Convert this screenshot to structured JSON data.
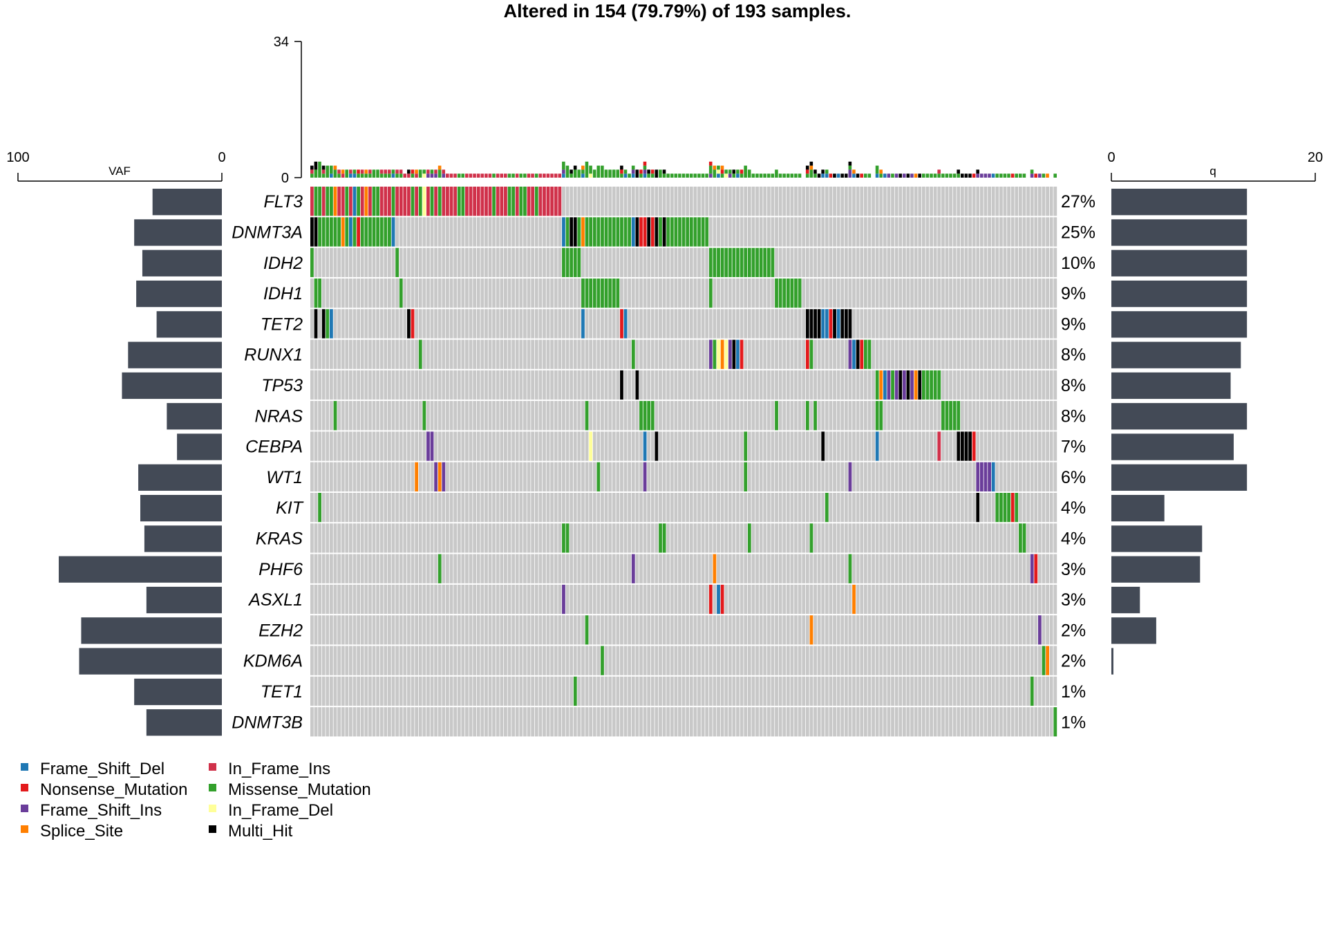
{
  "chart_data": {
    "type": "oncoplot",
    "title": "Altered in 154 (79.79%) of 193 samples.",
    "n_samples": 193,
    "top_axis": {
      "ticks": [
        "0",
        "34"
      ],
      "range": [
        0,
        34
      ]
    },
    "left_axis": {
      "label": "VAF",
      "ticks": [
        "100",
        "0"
      ],
      "range": [
        100,
        0
      ]
    },
    "right_axis": {
      "label": "q",
      "ticks": [
        "0",
        "20"
      ],
      "range": [
        0,
        20
      ]
    },
    "colors": {
      "background": "#c8c8c8",
      "bar": "#434a56",
      "Frame_Shift_Del": "#1f78b4",
      "Nonsense_Mutation": "#e31a1c",
      "Frame_Shift_Ins": "#6a3d9a",
      "Splice_Site": "#ff7f00",
      "In_Frame_Ins": "#d0314a",
      "Missense_Mutation": "#33a02c",
      "In_Frame_Del": "#ffff99",
      "Multi_Hit": "#000000"
    },
    "legend": [
      {
        "label": "Frame_Shift_Del",
        "color": "#1f78b4"
      },
      {
        "label": "Nonsense_Mutation",
        "color": "#e31a1c"
      },
      {
        "label": "Frame_Shift_Ins",
        "color": "#6a3d9a"
      },
      {
        "label": "Splice_Site",
        "color": "#ff7f00"
      },
      {
        "label": "In_Frame_Ins",
        "color": "#d0314a"
      },
      {
        "label": "Missense_Mutation",
        "color": "#33a02c"
      },
      {
        "label": "In_Frame_Del",
        "color": "#ffff99"
      },
      {
        "label": "Multi_Hit",
        "color": "#000000"
      }
    ],
    "genes": [
      {
        "name": "FLT3",
        "pct": "27%",
        "vaf": 34,
        "q": 13.3
      },
      {
        "name": "DNMT3A",
        "pct": "25%",
        "vaf": 43,
        "q": 13.3
      },
      {
        "name": "IDH2",
        "pct": "10%",
        "vaf": 39,
        "q": 13.3
      },
      {
        "name": "IDH1",
        "pct": "9%",
        "vaf": 42,
        "q": 13.3
      },
      {
        "name": "TET2",
        "pct": "9%",
        "vaf": 32,
        "q": 13.3
      },
      {
        "name": "RUNX1",
        "pct": "8%",
        "vaf": 46,
        "q": 12.7
      },
      {
        "name": "TP53",
        "pct": "8%",
        "vaf": 49,
        "q": 11.7
      },
      {
        "name": "NRAS",
        "pct": "8%",
        "vaf": 27,
        "q": 13.3
      },
      {
        "name": "CEBPA",
        "pct": "7%",
        "vaf": 22,
        "q": 12.0
      },
      {
        "name": "WT1",
        "pct": "6%",
        "vaf": 41,
        "q": 13.3
      },
      {
        "name": "KIT",
        "pct": "4%",
        "vaf": 40,
        "q": 5.2
      },
      {
        "name": "KRAS",
        "pct": "4%",
        "vaf": 38,
        "q": 8.9
      },
      {
        "name": "PHF6",
        "pct": "3%",
        "vaf": 80,
        "q": 8.7
      },
      {
        "name": "ASXL1",
        "pct": "3%",
        "vaf": 37,
        "q": 2.8
      },
      {
        "name": "EZH2",
        "pct": "2%",
        "vaf": 69,
        "q": 4.4
      },
      {
        "name": "KDM6A",
        "pct": "2%",
        "vaf": 70,
        "q": 0.2
      },
      {
        "name": "TET1",
        "pct": "1%",
        "vaf": 43,
        "q": 0
      },
      {
        "name": "DNMT3B",
        "pct": "1%",
        "vaf": 37,
        "q": 0
      }
    ],
    "mutations": [
      {
        "gene": 0,
        "cols": [
          [
            0,
            0,
            "In_Frame_Ins"
          ],
          [
            1,
            2,
            "Missense_Mutation"
          ],
          [
            3,
            3,
            "In_Frame_Ins"
          ],
          [
            4,
            5,
            "Missense_Mutation"
          ],
          [
            6,
            6,
            "Splice_Site"
          ],
          [
            7,
            8,
            "In_Frame_Ins"
          ],
          [
            9,
            9,
            "Missense_Mutation"
          ],
          [
            10,
            10,
            "In_Frame_Ins"
          ],
          [
            11,
            11,
            "Frame_Shift_Del"
          ],
          [
            12,
            12,
            "Missense_Mutation"
          ],
          [
            13,
            13,
            "In_Frame_Ins"
          ],
          [
            14,
            14,
            "Splice_Site"
          ],
          [
            15,
            15,
            "In_Frame_Ins"
          ],
          [
            16,
            17,
            "Missense_Mutation"
          ],
          [
            18,
            20,
            "In_Frame_Ins"
          ],
          [
            21,
            21,
            "Missense_Mutation"
          ],
          [
            22,
            25,
            "In_Frame_Ins"
          ],
          [
            26,
            26,
            "Missense_Mutation"
          ],
          [
            27,
            27,
            "In_Frame_Ins"
          ],
          [
            28,
            28,
            "Missense_Mutation"
          ],
          [
            29,
            29,
            "In_Frame_Del"
          ],
          [
            30,
            30,
            "In_Frame_Ins"
          ],
          [
            31,
            31,
            "Missense_Mutation"
          ],
          [
            32,
            32,
            "In_Frame_Ins"
          ],
          [
            33,
            33,
            "Missense_Mutation"
          ],
          [
            34,
            37,
            "In_Frame_Ins"
          ],
          [
            38,
            39,
            "Missense_Mutation"
          ],
          [
            40,
            46,
            "In_Frame_Ins"
          ],
          [
            47,
            47,
            "Missense_Mutation"
          ],
          [
            48,
            50,
            "In_Frame_Ins"
          ],
          [
            51,
            52,
            "Missense_Mutation"
          ],
          [
            53,
            53,
            "In_Frame_Ins"
          ],
          [
            54,
            55,
            "Missense_Mutation"
          ],
          [
            56,
            57,
            "In_Frame_Ins"
          ],
          [
            58,
            58,
            "Missense_Mutation"
          ],
          [
            59,
            64,
            "In_Frame_Ins"
          ]
        ]
      },
      {
        "gene": 1,
        "cols": [
          [
            0,
            1,
            "Multi_Hit"
          ],
          [
            2,
            7,
            "Missense_Mutation"
          ],
          [
            8,
            8,
            "Splice_Site"
          ],
          [
            9,
            9,
            "Missense_Mutation"
          ],
          [
            10,
            10,
            "Frame_Shift_Del"
          ],
          [
            11,
            11,
            "Missense_Mutation"
          ],
          [
            12,
            12,
            "Nonsense_Mutation"
          ],
          [
            13,
            20,
            "Missense_Mutation"
          ],
          [
            21,
            21,
            "Frame_Shift_Del"
          ],
          [
            65,
            65,
            "Frame_Shift_Del"
          ],
          [
            66,
            66,
            "Missense_Mutation"
          ],
          [
            67,
            68,
            "Multi_Hit"
          ],
          [
            69,
            69,
            "Missense_Mutation"
          ],
          [
            70,
            70,
            "Splice_Site"
          ],
          [
            71,
            82,
            "Missense_Mutation"
          ],
          [
            83,
            83,
            "Frame_Shift_Del"
          ],
          [
            84,
            84,
            "Multi_Hit"
          ],
          [
            85,
            86,
            "Nonsense_Mutation"
          ],
          [
            87,
            87,
            "Multi_Hit"
          ],
          [
            88,
            88,
            "Nonsense_Mutation"
          ],
          [
            89,
            89,
            "Multi_Hit"
          ],
          [
            90,
            90,
            "Missense_Mutation"
          ],
          [
            91,
            91,
            "Multi_Hit"
          ],
          [
            92,
            102,
            "Missense_Mutation"
          ]
        ]
      },
      {
        "gene": 2,
        "cols": [
          [
            0,
            0,
            "Missense_Mutation"
          ],
          [
            22,
            22,
            "Missense_Mutation"
          ],
          [
            65,
            69,
            "Missense_Mutation"
          ],
          [
            103,
            119,
            "Missense_Mutation"
          ]
        ]
      },
      {
        "gene": 3,
        "cols": [
          [
            1,
            2,
            "Missense_Mutation"
          ],
          [
            23,
            23,
            "Missense_Mutation"
          ],
          [
            70,
            79,
            "Missense_Mutation"
          ],
          [
            103,
            103,
            "Missense_Mutation"
          ],
          [
            120,
            126,
            "Missense_Mutation"
          ]
        ]
      },
      {
        "gene": 4,
        "cols": [
          [
            1,
            1,
            "Multi_Hit"
          ],
          [
            3,
            3,
            "Multi_Hit"
          ],
          [
            4,
            4,
            "Missense_Mutation"
          ],
          [
            5,
            5,
            "Frame_Shift_Del"
          ],
          [
            25,
            25,
            "Multi_Hit"
          ],
          [
            26,
            26,
            "Nonsense_Mutation"
          ],
          [
            70,
            70,
            "Frame_Shift_Del"
          ],
          [
            80,
            80,
            "Nonsense_Mutation"
          ],
          [
            81,
            81,
            "Frame_Shift_Del"
          ],
          [
            128,
            131,
            "Multi_Hit"
          ],
          [
            132,
            133,
            "Frame_Shift_Del"
          ],
          [
            134,
            134,
            "Nonsense_Mutation"
          ],
          [
            135,
            135,
            "Multi_Hit"
          ],
          [
            136,
            136,
            "Frame_Shift_Del"
          ],
          [
            137,
            139,
            "Multi_Hit"
          ]
        ]
      },
      {
        "gene": 5,
        "cols": [
          [
            28,
            28,
            "Missense_Mutation"
          ],
          [
            83,
            83,
            "Missense_Mutation"
          ],
          [
            103,
            103,
            "Frame_Shift_Ins"
          ],
          [
            104,
            104,
            "Missense_Mutation"
          ],
          [
            105,
            105,
            "In_Frame_Del"
          ],
          [
            106,
            106,
            "Splice_Site"
          ],
          [
            107,
            107,
            "In_Frame_Del"
          ],
          [
            108,
            108,
            "Frame_Shift_Ins"
          ],
          [
            109,
            109,
            "Multi_Hit"
          ],
          [
            110,
            110,
            "Frame_Shift_Del"
          ],
          [
            111,
            111,
            "Nonsense_Mutation"
          ],
          [
            128,
            128,
            "Nonsense_Mutation"
          ],
          [
            129,
            129,
            "Missense_Mutation"
          ],
          [
            139,
            139,
            "Frame_Shift_Ins"
          ],
          [
            140,
            140,
            "Frame_Shift_Del"
          ],
          [
            141,
            141,
            "Multi_Hit"
          ],
          [
            142,
            142,
            "Nonsense_Mutation"
          ],
          [
            143,
            144,
            "Missense_Mutation"
          ]
        ]
      },
      {
        "gene": 6,
        "cols": [
          [
            80,
            80,
            "Multi_Hit"
          ],
          [
            84,
            84,
            "Multi_Hit"
          ],
          [
            146,
            146,
            "Missense_Mutation"
          ],
          [
            147,
            147,
            "Splice_Site"
          ],
          [
            148,
            148,
            "Frame_Shift_Del"
          ],
          [
            149,
            149,
            "Frame_Shift_Ins"
          ],
          [
            150,
            150,
            "Missense_Mutation"
          ],
          [
            151,
            151,
            "Frame_Shift_Ins"
          ],
          [
            152,
            152,
            "Multi_Hit"
          ],
          [
            153,
            153,
            "Frame_Shift_Ins"
          ],
          [
            154,
            154,
            "Multi_Hit"
          ],
          [
            155,
            155,
            "Frame_Shift_Ins"
          ],
          [
            156,
            156,
            "Splice_Site"
          ],
          [
            157,
            157,
            "Multi_Hit"
          ],
          [
            158,
            162,
            "Missense_Mutation"
          ]
        ]
      },
      {
        "gene": 7,
        "cols": [
          [
            6,
            6,
            "Missense_Mutation"
          ],
          [
            29,
            29,
            "Missense_Mutation"
          ],
          [
            71,
            71,
            "Missense_Mutation"
          ],
          [
            85,
            88,
            "Missense_Mutation"
          ],
          [
            120,
            120,
            "Missense_Mutation"
          ],
          [
            128,
            128,
            "Missense_Mutation"
          ],
          [
            130,
            130,
            "Missense_Mutation"
          ],
          [
            146,
            147,
            "Missense_Mutation"
          ],
          [
            163,
            167,
            "Missense_Mutation"
          ]
        ]
      },
      {
        "gene": 8,
        "cols": [
          [
            30,
            31,
            "Frame_Shift_Ins"
          ],
          [
            72,
            72,
            "In_Frame_Del"
          ],
          [
            86,
            86,
            "Frame_Shift_Del"
          ],
          [
            89,
            89,
            "Multi_Hit"
          ],
          [
            112,
            112,
            "Missense_Mutation"
          ],
          [
            132,
            132,
            "Multi_Hit"
          ],
          [
            146,
            146,
            "Frame_Shift_Del"
          ],
          [
            162,
            162,
            "In_Frame_Ins"
          ],
          [
            167,
            170,
            "Multi_Hit"
          ],
          [
            171,
            171,
            "Nonsense_Mutation"
          ]
        ]
      },
      {
        "gene": 9,
        "cols": [
          [
            27,
            27,
            "Splice_Site"
          ],
          [
            32,
            32,
            "Frame_Shift_Ins"
          ],
          [
            33,
            33,
            "Splice_Site"
          ],
          [
            34,
            34,
            "Frame_Shift_Ins"
          ],
          [
            74,
            74,
            "Missense_Mutation"
          ],
          [
            86,
            86,
            "Frame_Shift_Ins"
          ],
          [
            112,
            112,
            "Missense_Mutation"
          ],
          [
            139,
            139,
            "Frame_Shift_Ins"
          ],
          [
            172,
            175,
            "Frame_Shift_Ins"
          ],
          [
            176,
            176,
            "Frame_Shift_Del"
          ]
        ]
      },
      {
        "gene": 10,
        "cols": [
          [
            2,
            2,
            "Missense_Mutation"
          ],
          [
            133,
            133,
            "Missense_Mutation"
          ],
          [
            172,
            172,
            "Multi_Hit"
          ],
          [
            177,
            180,
            "Missense_Mutation"
          ],
          [
            181,
            181,
            "Nonsense_Mutation"
          ],
          [
            182,
            182,
            "Missense_Mutation"
          ]
        ]
      },
      {
        "gene": 11,
        "cols": [
          [
            65,
            66,
            "Missense_Mutation"
          ],
          [
            90,
            91,
            "Missense_Mutation"
          ],
          [
            113,
            113,
            "Missense_Mutation"
          ],
          [
            129,
            129,
            "Missense_Mutation"
          ],
          [
            183,
            184,
            "Missense_Mutation"
          ]
        ]
      },
      {
        "gene": 12,
        "cols": [
          [
            33,
            33,
            "Missense_Mutation"
          ],
          [
            83,
            83,
            "Frame_Shift_Ins"
          ],
          [
            104,
            104,
            "Splice_Site"
          ],
          [
            139,
            139,
            "Missense_Mutation"
          ],
          [
            186,
            186,
            "Frame_Shift_Ins"
          ],
          [
            187,
            187,
            "Nonsense_Mutation"
          ]
        ]
      },
      {
        "gene": 13,
        "cols": [
          [
            65,
            65,
            "Frame_Shift_Ins"
          ],
          [
            103,
            103,
            "Nonsense_Mutation"
          ],
          [
            105,
            105,
            "Frame_Shift_Del"
          ],
          [
            106,
            106,
            "Nonsense_Mutation"
          ],
          [
            140,
            140,
            "Splice_Site"
          ]
        ]
      },
      {
        "gene": 14,
        "cols": [
          [
            71,
            71,
            "Missense_Mutation"
          ],
          [
            129,
            129,
            "Splice_Site"
          ],
          [
            188,
            188,
            "Frame_Shift_Ins"
          ]
        ]
      },
      {
        "gene": 15,
        "cols": [
          [
            75,
            75,
            "Missense_Mutation"
          ],
          [
            189,
            189,
            "Missense_Mutation"
          ],
          [
            190,
            190,
            "Splice_Site"
          ]
        ]
      },
      {
        "gene": 16,
        "cols": [
          [
            68,
            68,
            "Missense_Mutation"
          ],
          [
            186,
            186,
            "Missense_Mutation"
          ]
        ]
      },
      {
        "gene": 17,
        "cols": [
          [
            192,
            192,
            "Missense_Mutation"
          ]
        ]
      }
    ]
  }
}
